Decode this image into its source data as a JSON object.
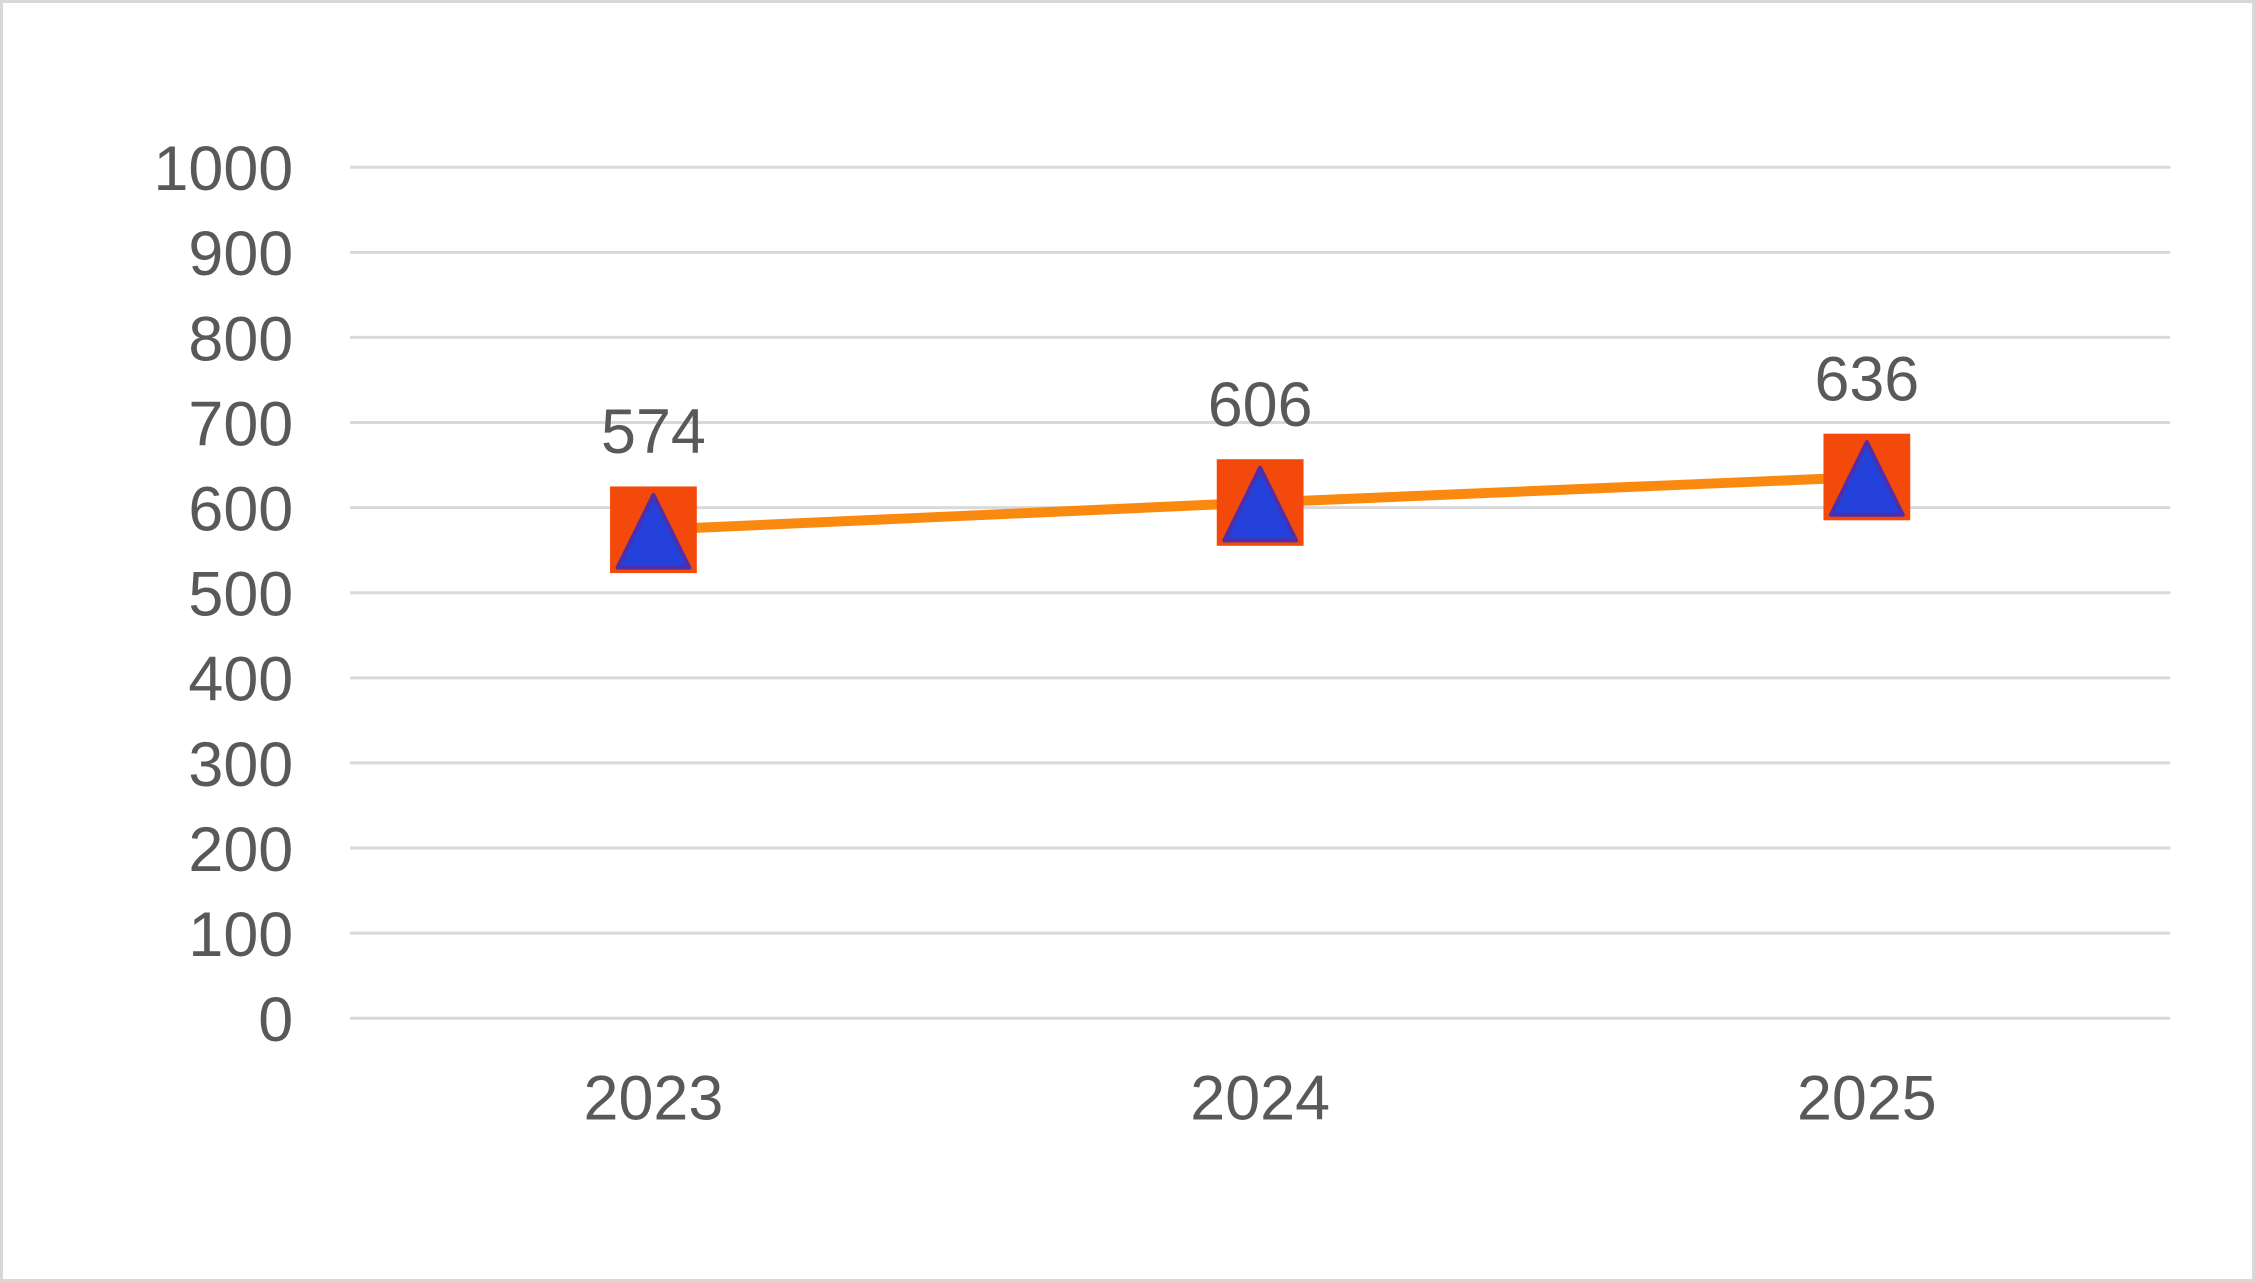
{
  "chart_data": {
    "type": "line",
    "title": "",
    "xlabel": "",
    "ylabel": "",
    "categories": [
      "2023",
      "2024",
      "2025"
    ],
    "series": [
      {
        "name": "series-1",
        "values": [
          574,
          606,
          636
        ]
      }
    ],
    "data_labels": [
      "574",
      "606",
      "636"
    ],
    "ylim": [
      0,
      1000
    ],
    "yticks": [
      0,
      100,
      200,
      300,
      400,
      500,
      600,
      700,
      800,
      900,
      1000
    ],
    "ytick_labels": [
      "0",
      "100",
      "200",
      "300",
      "400",
      "500",
      "600",
      "700",
      "800",
      "900",
      "1000"
    ],
    "grid": "horizontal",
    "legend": "none",
    "marker": "orange-square-with-blue-triangle",
    "colors": {
      "line": "#FA8A0F",
      "marker_square": "#F3490B",
      "marker_triangle": "#2441DB",
      "marker_triangle_edge": "#4E2FA9",
      "gridline": "#D9D9D9",
      "axis_text": "#595959",
      "data_label_text": "#595959",
      "background": "#FFFFFF",
      "frame_border": "#D8D8D8"
    }
  }
}
